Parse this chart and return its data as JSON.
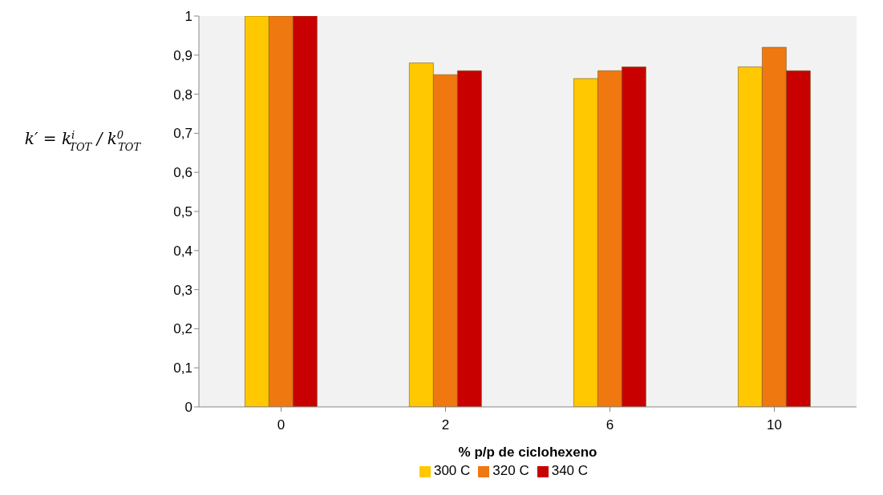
{
  "chart_data": {
    "type": "bar",
    "xlabel": "% p/p de ciclohexeno",
    "ylabel": "k′ = k$^{i}$$_{TOT}$ / k$^{0}$$_{TOT}$",
    "categories": [
      "0",
      "2",
      "6",
      "10"
    ],
    "series": [
      {
        "name": "300 C",
        "color": "#ffc800",
        "values": [
          1,
          0.88,
          0.84,
          0.87
        ]
      },
      {
        "name": "320 C",
        "color": "#f07810",
        "values": [
          1,
          0.85,
          0.86,
          0.92
        ]
      },
      {
        "name": "340 C",
        "color": "#c80000",
        "values": [
          1,
          0.86,
          0.87,
          0.86
        ]
      }
    ],
    "ylim": [
      0,
      1
    ],
    "yticks": [
      0,
      {
        "value": 0.1,
        "label": "0,1"
      },
      {
        "value": 0.2,
        "label": "0,2"
      },
      {
        "value": 0.3,
        "label": "0,3"
      },
      {
        "value": 0.4,
        "label": "0,4"
      },
      {
        "value": 0.5,
        "label": "0,5"
      },
      {
        "value": 0.6,
        "label": "0,6"
      },
      {
        "value": 0.7,
        "label": "0,7"
      },
      {
        "value": 0.8,
        "label": "0,8"
      },
      {
        "value": 0.9,
        "label": "0,9"
      },
      1
    ],
    "grid": false,
    "legend": "bottom"
  }
}
